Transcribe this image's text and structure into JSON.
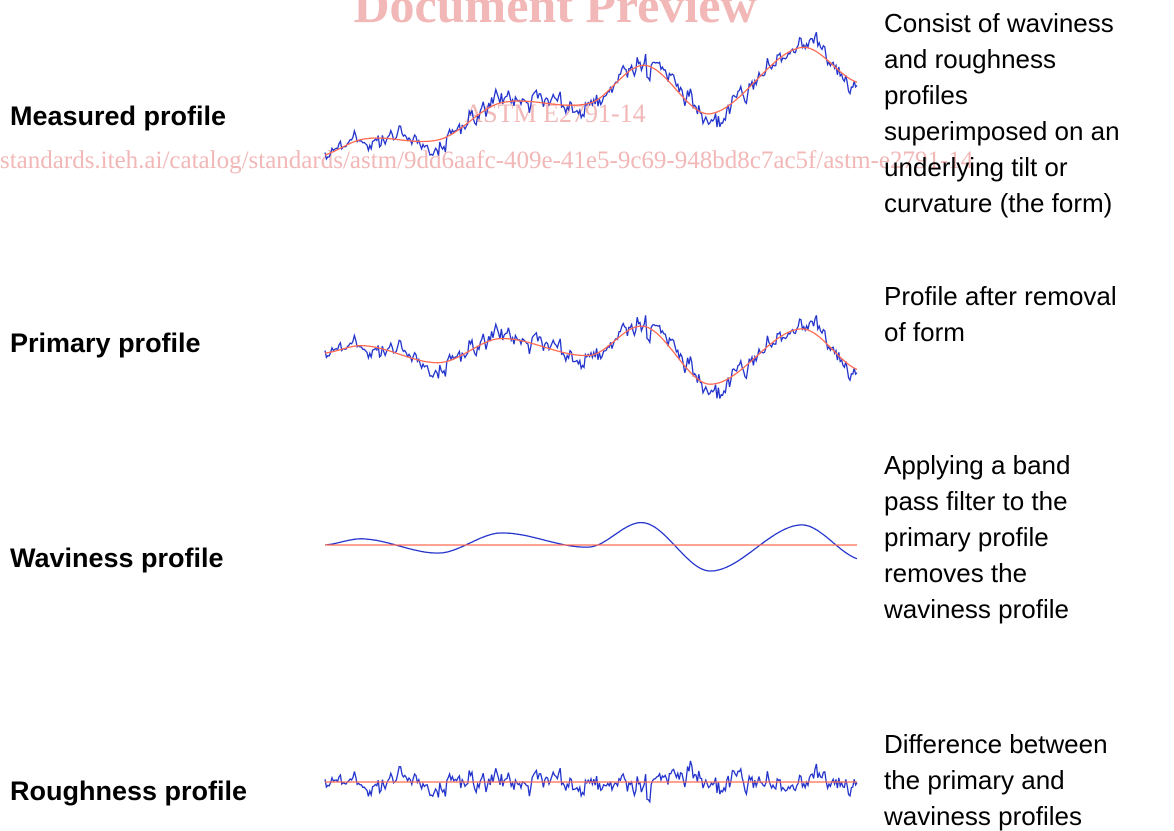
{
  "watermark": {
    "title": "Document Preview",
    "standard": "ASTM E2791-14",
    "url": "standards.iteh.ai/catalog/standards/astm/9dd6aafc-409e-41e5-9c69-948bd8c7ac5f/astm-e2791-14"
  },
  "profiles": [
    {
      "label": "Measured profile",
      "description": [
        "Consist of waviness",
        "and roughness",
        "profiles",
        "superimposed on an",
        "underlying tilt or",
        "curvature (the form)"
      ]
    },
    {
      "label": "Primary profile",
      "description": [
        "Profile after removal",
        "of form"
      ]
    },
    {
      "label": "Waviness profile",
      "description": [
        "Applying a band",
        "pass filter to the",
        "primary profile",
        "removes the",
        "waviness profile"
      ]
    },
    {
      "label": "Roughness profile",
      "description": [
        "Difference between",
        "the primary and",
        "waviness profiles"
      ]
    }
  ]
}
